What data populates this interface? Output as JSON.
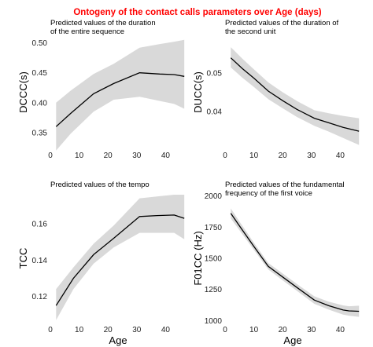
{
  "figure": {
    "title": "Ontogeny of the contact calls parameters over Age (days)",
    "title_color": "#ff0000",
    "band_color": "#d9d9d9",
    "line_color": "#000000"
  },
  "chart_data": [
    {
      "type": "line",
      "subtitle_lines": [
        "Predicted values of the duration",
        "of the entire sequence"
      ],
      "xlabel": "",
      "ylabel": "DCCC(s)",
      "xlim": [
        0,
        47
      ],
      "ylim": [
        0.325,
        0.51
      ],
      "xticks": [
        0,
        10,
        20,
        30,
        40
      ],
      "yticks": [
        0.35,
        0.4,
        0.45,
        0.5
      ],
      "ytick_labels": [
        "0.35",
        "0.40",
        "0.45",
        "0.50"
      ],
      "x": [
        2,
        7,
        15,
        22,
        31,
        38,
        43,
        46.5
      ],
      "values": [
        0.36,
        0.382,
        0.415,
        0.432,
        0.45,
        0.448,
        0.447,
        0.444
      ],
      "lower": [
        0.32,
        0.348,
        0.385,
        0.405,
        0.41,
        0.403,
        0.398,
        0.39
      ],
      "upper": [
        0.4,
        0.42,
        0.448,
        0.465,
        0.492,
        0.498,
        0.502,
        0.505
      ]
    },
    {
      "type": "line",
      "subtitle_lines": [
        "Predicted values of the duration of",
        "the second unit"
      ],
      "xlabel": "",
      "ylabel": "DUCC(s)",
      "xlim": [
        0,
        47
      ],
      "ylim": [
        0.0305,
        0.0595
      ],
      "xticks": [
        0,
        10,
        20,
        30,
        40
      ],
      "yticks": [
        0.04,
        0.05
      ],
      "ytick_labels": [
        "0.04",
        "0.05"
      ],
      "x": [
        2,
        6,
        10,
        15,
        20,
        25,
        31,
        36,
        41,
        46.5
      ],
      "values": [
        0.054,
        0.0512,
        0.0487,
        0.0453,
        0.0428,
        0.0405,
        0.0382,
        0.037,
        0.0358,
        0.0348
      ],
      "lower": [
        0.0515,
        0.0488,
        0.0464,
        0.0432,
        0.0408,
        0.0385,
        0.0362,
        0.0347,
        0.033,
        0.0312
      ],
      "upper": [
        0.0568,
        0.0538,
        0.051,
        0.0476,
        0.045,
        0.0427,
        0.0403,
        0.0395,
        0.0388,
        0.0382
      ]
    },
    {
      "type": "line",
      "subtitle_lines": [
        "Predicted values of the tempo"
      ],
      "xlabel": "Age",
      "ylabel": "TCC",
      "xlim": [
        0,
        47
      ],
      "ylim": [
        0.106,
        0.176
      ],
      "xticks": [
        0,
        10,
        20,
        30,
        40
      ],
      "yticks": [
        0.12,
        0.14,
        0.16
      ],
      "ytick_labels": [
        "0.12",
        "0.14",
        "0.16"
      ],
      "x": [
        2,
        8,
        15,
        22,
        31,
        37,
        43,
        46.5
      ],
      "values": [
        0.115,
        0.13,
        0.143,
        0.152,
        0.164,
        0.1645,
        0.1648,
        0.163
      ],
      "lower": [
        0.107,
        0.124,
        0.138,
        0.147,
        0.155,
        0.155,
        0.155,
        0.1515
      ],
      "upper": [
        0.124,
        0.136,
        0.149,
        0.159,
        0.174,
        0.175,
        0.176,
        0.176
      ]
    },
    {
      "type": "line",
      "subtitle_lines": [
        "Predicted values of the fundamental",
        "frequency of the first voice"
      ],
      "xlabel": "Age",
      "ylabel": "F01CC (Hz)",
      "xlim": [
        0,
        47
      ],
      "ylim": [
        990,
        2010
      ],
      "xticks": [
        0,
        10,
        20,
        30,
        40
      ],
      "yticks": [
        1000,
        1250,
        1500,
        1750,
        2000
      ],
      "ytick_labels": [
        "1000",
        "1250",
        "1500",
        "1750",
        "2000"
      ],
      "x": [
        2,
        5,
        10,
        15,
        20,
        25,
        31,
        36,
        41,
        43,
        46.5
      ],
      "values": [
        1860,
        1760,
        1595,
        1435,
        1350,
        1265,
        1165,
        1120,
        1085,
        1078,
        1075
      ],
      "lower": [
        1820,
        1725,
        1568,
        1410,
        1323,
        1238,
        1135,
        1088,
        1048,
        1040,
        1030
      ],
      "upper": [
        1900,
        1795,
        1625,
        1462,
        1378,
        1293,
        1195,
        1152,
        1122,
        1115,
        1120
      ]
    }
  ]
}
